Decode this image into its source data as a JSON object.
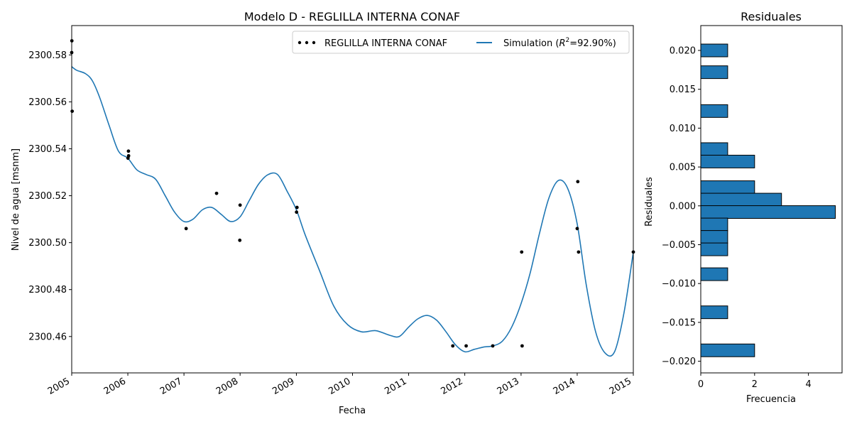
{
  "chart_data": [
    {
      "type": "line",
      "title": "Modelo D - REGLILLA INTERNA CONAF",
      "xlabel": "Fecha",
      "ylabel": "Nivel de agua [msnm]",
      "xlim": [
        "2005-01-01",
        "2015-01-01"
      ],
      "ylim": [
        2300.4445,
        2300.5925
      ],
      "x_ticks": [
        "2005",
        "2006",
        "2007",
        "2008",
        "2009",
        "2010",
        "2011",
        "2012",
        "2013",
        "2014",
        "2015"
      ],
      "y_ticks": [
        2300.46,
        2300.48,
        2300.5,
        2300.52,
        2300.54,
        2300.56,
        2300.58
      ],
      "y_tick_labels": [
        "2300.46",
        "2300.48",
        "2300.50",
        "2300.52",
        "2300.54",
        "2300.56",
        "2300.58"
      ],
      "legend": {
        "placement": "top-right",
        "observed_label": "REGLILLA INTERNA CONAF",
        "simulation_label_prefix": "Simulation (",
        "simulation_label_r2": "R",
        "simulation_label_sup": "2",
        "simulation_label_suffix": "=92.90%)"
      },
      "colors": {
        "simulation": "#1f77b4",
        "observed": "#000000"
      },
      "series": [
        {
          "name": "REGLILLA INTERNA CONAF",
          "kind": "scatter",
          "points": [
            [
              "2005-01-02",
              2300.586
            ],
            [
              "2005-01-01",
              2300.581
            ],
            [
              "2005-01-04",
              2300.556
            ],
            [
              "2006-01-05",
              2300.539
            ],
            [
              "2006-01-06",
              2300.537
            ],
            [
              "2006-01-02",
              2300.536
            ],
            [
              "2007-01-15",
              2300.506
            ],
            [
              "2007-08-01",
              2300.521
            ],
            [
              "2008-01-01",
              2300.516
            ],
            [
              "2007-12-30",
              2300.501
            ],
            [
              "2009-01-05",
              2300.515
            ],
            [
              "2009-01-02",
              2300.513
            ],
            [
              "2011-10-15",
              2300.456
            ],
            [
              "2012-01-10",
              2300.456
            ],
            [
              "2012-07-01",
              2300.456
            ],
            [
              "2013-01-05",
              2300.496
            ],
            [
              "2013-01-08",
              2300.456
            ],
            [
              "2014-01-05",
              2300.526
            ],
            [
              "2014-01-01",
              2300.506
            ],
            [
              "2014-01-10",
              2300.496
            ],
            [
              "2015-01-01",
              2300.496
            ]
          ]
        },
        {
          "name": "Simulation",
          "kind": "line",
          "points": [
            [
              "2005-01-01",
              2300.575
            ],
            [
              "2005-02-01",
              2300.5735
            ],
            [
              "2005-04-01",
              2300.572
            ],
            [
              "2005-05-15",
              2300.569
            ],
            [
              "2005-07-01",
              2300.562
            ],
            [
              "2005-09-01",
              2300.55
            ],
            [
              "2005-11-01",
              2300.539
            ],
            [
              "2006-01-01",
              2300.536
            ],
            [
              "2006-03-01",
              2300.531
            ],
            [
              "2006-05-01",
              2300.529
            ],
            [
              "2006-07-01",
              2300.527
            ],
            [
              "2006-09-01",
              2300.52
            ],
            [
              "2006-11-01",
              2300.513
            ],
            [
              "2007-01-01",
              2300.509
            ],
            [
              "2007-03-01",
              2300.51
            ],
            [
              "2007-05-01",
              2300.514
            ],
            [
              "2007-07-01",
              2300.515
            ],
            [
              "2007-09-01",
              2300.512
            ],
            [
              "2007-11-01",
              2300.509
            ],
            [
              "2008-01-01",
              2300.511
            ],
            [
              "2008-03-01",
              2300.518
            ],
            [
              "2008-05-01",
              2300.525
            ],
            [
              "2008-07-01",
              2300.529
            ],
            [
              "2008-09-01",
              2300.529
            ],
            [
              "2008-11-01",
              2300.522
            ],
            [
              "2009-01-01",
              2300.514
            ],
            [
              "2009-03-01",
              2300.503
            ],
            [
              "2009-06-01",
              2300.488
            ],
            [
              "2009-09-01",
              2300.473
            ],
            [
              "2009-12-01",
              2300.465
            ],
            [
              "2010-03-01",
              2300.462
            ],
            [
              "2010-06-01",
              2300.4625
            ],
            [
              "2010-09-01",
              2300.4605
            ],
            [
              "2010-11-01",
              2300.46
            ],
            [
              "2011-01-01",
              2300.464
            ],
            [
              "2011-03-01",
              2300.4675
            ],
            [
              "2011-05-01",
              2300.469
            ],
            [
              "2011-07-01",
              2300.467
            ],
            [
              "2011-09-01",
              2300.462
            ],
            [
              "2011-11-01",
              2300.4565
            ],
            [
              "2012-01-01",
              2300.4535
            ],
            [
              "2012-03-01",
              2300.4545
            ],
            [
              "2012-05-01",
              2300.4555
            ],
            [
              "2012-07-01",
              2300.456
            ],
            [
              "2012-09-01",
              2300.458
            ],
            [
              "2012-11-01",
              2300.464
            ],
            [
              "2013-01-01",
              2300.474
            ],
            [
              "2013-03-01",
              2300.487
            ],
            [
              "2013-05-01",
              2300.504
            ],
            [
              "2013-07-01",
              2300.519
            ],
            [
              "2013-09-01",
              2300.5265
            ],
            [
              "2013-11-01",
              2300.523
            ],
            [
              "2014-01-01",
              2300.508
            ],
            [
              "2014-03-01",
              2300.482
            ],
            [
              "2014-05-01",
              2300.462
            ],
            [
              "2014-07-01",
              2300.453
            ],
            [
              "2014-09-01",
              2300.4535
            ],
            [
              "2014-11-01",
              2300.47
            ],
            [
              "2015-01-01",
              2300.496
            ]
          ]
        }
      ]
    },
    {
      "type": "bar",
      "orientation": "horizontal",
      "title": "Residuales",
      "xlabel": "Frecuencia",
      "ylabel": "Residuales",
      "xlim": [
        0,
        5.25
      ],
      "ylim": [
        -0.0215,
        0.0232
      ],
      "x_ticks": [
        0,
        2,
        4
      ],
      "x_tick_labels": [
        "0",
        "2",
        "4"
      ],
      "y_ticks": [
        -0.02,
        -0.015,
        -0.01,
        -0.005,
        0.0,
        0.005,
        0.01,
        0.015,
        0.02
      ],
      "y_tick_labels": [
        "−0.020",
        "−0.015",
        "−0.010",
        "−0.005",
        "0.000",
        "0.005",
        "0.010",
        "0.015",
        "0.020"
      ],
      "bin_width": 0.00164,
      "bins": [
        {
          "center": 0.02,
          "count": 1
        },
        {
          "center": 0.0172,
          "count": 1
        },
        {
          "center": 0.0122,
          "count": 1
        },
        {
          "center": 0.0073,
          "count": 1
        },
        {
          "center": 0.0057,
          "count": 2
        },
        {
          "center": 0.0024,
          "count": 2
        },
        {
          "center": 0.0008,
          "count": 3
        },
        {
          "center": -0.0008,
          "count": 5
        },
        {
          "center": -0.0024,
          "count": 1
        },
        {
          "center": -0.004,
          "count": 1
        },
        {
          "center": -0.0056,
          "count": 1
        },
        {
          "center": -0.0088,
          "count": 1
        },
        {
          "center": -0.0137,
          "count": 1
        },
        {
          "center": -0.0186,
          "count": 2
        }
      ],
      "colors": {
        "bar_fill": "#1f77b4",
        "bar_edge": "#000000"
      }
    }
  ]
}
